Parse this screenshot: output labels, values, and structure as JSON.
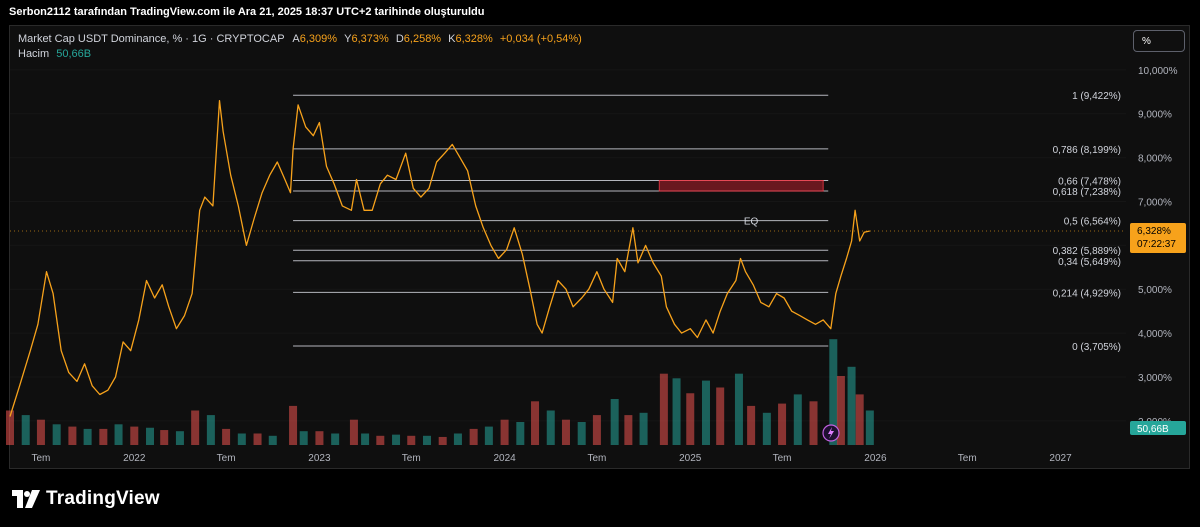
{
  "header": {
    "caption": "Serbon2112 tarafından TradingView.com ile Ara 21, 2025 18:37 UTC+2 tarihinde oluşturuldu"
  },
  "legend": {
    "symbol": "Market Cap USDT Dominance, % · 1G · CRYPTOCAP",
    "o_label": "A",
    "o_value": "6,309%",
    "h_label": "Y",
    "h_value": "6,373%",
    "l_label": "D",
    "l_value": "6,258%",
    "c_label": "K",
    "c_value": "6,328%",
    "change": "+0,034 (+0,54%)",
    "volume_label": "Hacim",
    "volume_value": "50,66B"
  },
  "toolbar": {
    "scale_button": "%"
  },
  "branding": {
    "logo_text": "TradingView"
  },
  "colors": {
    "background": "#0f0f0f",
    "price_line": "#f7a21b",
    "volume_up": "#26a69a",
    "volume_down": "#ef5350",
    "fib_line": "#d1d4dc",
    "zone_fill": "#7a1a22",
    "zone_border": "#f23645",
    "last_price_badge": "#f7a21b",
    "volume_badge": "#26a69a"
  },
  "chart_data": {
    "type": "line",
    "title": "Market Cap USDT Dominance, %",
    "y_unit": "%",
    "ylim": [
      1.45,
      10.27
    ],
    "y_ticks": [
      {
        "v": 10.0,
        "label": "10,000%"
      },
      {
        "v": 9.0,
        "label": "9,000%"
      },
      {
        "v": 8.0,
        "label": "8,000%"
      },
      {
        "v": 7.0,
        "label": "7,000%"
      },
      {
        "v": 6.0,
        "label": "6,000%"
      },
      {
        "v": 5.0,
        "label": "5,000%"
      },
      {
        "v": 4.0,
        "label": "4,000%"
      },
      {
        "v": 3.0,
        "label": "3,000%"
      },
      {
        "v": 2.0,
        "label": "2,000%"
      }
    ],
    "x_range": [
      "2021-05-01",
      "2027-05-10"
    ],
    "x_ticks": [
      {
        "date": "2021-07-01",
        "label": "Tem"
      },
      {
        "date": "2022-01-01",
        "label": "2022"
      },
      {
        "date": "2022-07-01",
        "label": "Tem"
      },
      {
        "date": "2023-01-01",
        "label": "2023"
      },
      {
        "date": "2023-07-01",
        "label": "Tem"
      },
      {
        "date": "2024-01-01",
        "label": "2024"
      },
      {
        "date": "2024-07-01",
        "label": "Tem"
      },
      {
        "date": "2025-01-01",
        "label": "2025"
      },
      {
        "date": "2025-07-01",
        "label": "Tem"
      },
      {
        "date": "2026-01-01",
        "label": "2026"
      },
      {
        "date": "2026-07-01",
        "label": "Tem"
      },
      {
        "date": "2027-01-01",
        "label": "2027"
      }
    ],
    "series": [
      {
        "values": [
          [
            "2021-05-01",
            2.1
          ],
          [
            "2021-05-20",
            2.8
          ],
          [
            "2021-06-10",
            3.6
          ],
          [
            "2021-06-25",
            4.2
          ],
          [
            "2021-07-12",
            5.4
          ],
          [
            "2021-07-25",
            4.9
          ],
          [
            "2021-08-10",
            3.6
          ],
          [
            "2021-08-25",
            3.1
          ],
          [
            "2021-09-10",
            2.9
          ],
          [
            "2021-09-25",
            3.3
          ],
          [
            "2021-10-10",
            2.8
          ],
          [
            "2021-10-25",
            2.6
          ],
          [
            "2021-11-10",
            2.7
          ],
          [
            "2021-11-25",
            3.0
          ],
          [
            "2021-12-10",
            3.8
          ],
          [
            "2021-12-25",
            3.6
          ],
          [
            "2022-01-10",
            4.3
          ],
          [
            "2022-01-25",
            5.2
          ],
          [
            "2022-02-10",
            4.8
          ],
          [
            "2022-02-25",
            5.1
          ],
          [
            "2022-03-10",
            4.6
          ],
          [
            "2022-03-25",
            4.1
          ],
          [
            "2022-04-10",
            4.4
          ],
          [
            "2022-04-25",
            4.9
          ],
          [
            "2022-05-10",
            6.8
          ],
          [
            "2022-05-20",
            7.1
          ],
          [
            "2022-06-05",
            6.9
          ],
          [
            "2022-06-18",
            9.3
          ],
          [
            "2022-06-25",
            8.6
          ],
          [
            "2022-07-10",
            7.6
          ],
          [
            "2022-07-25",
            6.9
          ],
          [
            "2022-08-10",
            6.0
          ],
          [
            "2022-08-25",
            6.6
          ],
          [
            "2022-09-10",
            7.2
          ],
          [
            "2022-09-25",
            7.6
          ],
          [
            "2022-10-10",
            7.9
          ],
          [
            "2022-10-25",
            7.5
          ],
          [
            "2022-11-05",
            7.2
          ],
          [
            "2022-11-10",
            8.2
          ],
          [
            "2022-11-20",
            9.2
          ],
          [
            "2022-12-05",
            8.7
          ],
          [
            "2022-12-20",
            8.5
          ],
          [
            "2023-01-01",
            8.8
          ],
          [
            "2023-01-15",
            7.8
          ],
          [
            "2023-01-30",
            7.4
          ],
          [
            "2023-02-15",
            6.9
          ],
          [
            "2023-03-05",
            6.8
          ],
          [
            "2023-03-15",
            7.5
          ],
          [
            "2023-03-30",
            6.8
          ],
          [
            "2023-04-15",
            6.8
          ],
          [
            "2023-05-01",
            7.4
          ],
          [
            "2023-05-15",
            7.6
          ],
          [
            "2023-06-01",
            7.5
          ],
          [
            "2023-06-20",
            8.1
          ],
          [
            "2023-07-05",
            7.3
          ],
          [
            "2023-07-20",
            7.1
          ],
          [
            "2023-08-05",
            7.3
          ],
          [
            "2023-08-20",
            7.9
          ],
          [
            "2023-09-05",
            8.1
          ],
          [
            "2023-09-20",
            8.3
          ],
          [
            "2023-10-05",
            8.0
          ],
          [
            "2023-10-20",
            7.7
          ],
          [
            "2023-11-05",
            6.9
          ],
          [
            "2023-11-20",
            6.4
          ],
          [
            "2023-12-05",
            6.0
          ],
          [
            "2023-12-20",
            5.7
          ],
          [
            "2024-01-05",
            5.9
          ],
          [
            "2024-01-20",
            6.4
          ],
          [
            "2024-02-05",
            5.8
          ],
          [
            "2024-02-20",
            5.0
          ],
          [
            "2024-03-05",
            4.2
          ],
          [
            "2024-03-15",
            4.0
          ],
          [
            "2024-03-30",
            4.6
          ],
          [
            "2024-04-15",
            5.2
          ],
          [
            "2024-05-01",
            5.0
          ],
          [
            "2024-05-15",
            4.6
          ],
          [
            "2024-06-01",
            4.8
          ],
          [
            "2024-06-15",
            5.0
          ],
          [
            "2024-07-01",
            5.4
          ],
          [
            "2024-07-15",
            5.0
          ],
          [
            "2024-08-01",
            4.7
          ],
          [
            "2024-08-10",
            5.7
          ],
          [
            "2024-08-25",
            5.4
          ],
          [
            "2024-09-10",
            6.4
          ],
          [
            "2024-09-20",
            5.6
          ],
          [
            "2024-10-05",
            6.0
          ],
          [
            "2024-10-20",
            5.6
          ],
          [
            "2024-11-05",
            5.3
          ],
          [
            "2024-11-15",
            4.6
          ],
          [
            "2024-12-01",
            4.2
          ],
          [
            "2024-12-15",
            4.0
          ],
          [
            "2025-01-01",
            4.1
          ],
          [
            "2025-01-15",
            3.9
          ],
          [
            "2025-02-01",
            4.3
          ],
          [
            "2025-02-15",
            4.0
          ],
          [
            "2025-03-01",
            4.5
          ],
          [
            "2025-03-15",
            4.9
          ],
          [
            "2025-04-01",
            5.2
          ],
          [
            "2025-04-10",
            5.7
          ],
          [
            "2025-04-20",
            5.4
          ],
          [
            "2025-05-05",
            5.1
          ],
          [
            "2025-05-20",
            4.7
          ],
          [
            "2025-06-05",
            4.6
          ],
          [
            "2025-06-20",
            4.9
          ],
          [
            "2025-07-05",
            4.8
          ],
          [
            "2025-07-20",
            4.5
          ],
          [
            "2025-08-05",
            4.4
          ],
          [
            "2025-08-20",
            4.3
          ],
          [
            "2025-09-05",
            4.2
          ],
          [
            "2025-09-20",
            4.3
          ],
          [
            "2025-10-05",
            4.1
          ],
          [
            "2025-10-15",
            4.9
          ],
          [
            "2025-10-25",
            5.3
          ],
          [
            "2025-11-05",
            5.7
          ],
          [
            "2025-11-15",
            6.1
          ],
          [
            "2025-11-22",
            6.8
          ],
          [
            "2025-12-01",
            6.1
          ],
          [
            "2025-12-10",
            6.3
          ],
          [
            "2025-12-21",
            6.328
          ]
        ]
      }
    ],
    "volume": {
      "label": "Hacim",
      "last": "50,66B",
      "bars": [
        [
          "2021-05-01",
          0.3,
          "d"
        ],
        [
          "2021-06-01",
          0.26,
          "u"
        ],
        [
          "2021-07-01",
          0.22,
          "d"
        ],
        [
          "2021-08-01",
          0.18,
          "u"
        ],
        [
          "2021-09-01",
          0.16,
          "d"
        ],
        [
          "2021-10-01",
          0.14,
          "u"
        ],
        [
          "2021-11-01",
          0.14,
          "d"
        ],
        [
          "2021-12-01",
          0.18,
          "u"
        ],
        [
          "2022-01-01",
          0.16,
          "d"
        ],
        [
          "2022-02-01",
          0.15,
          "u"
        ],
        [
          "2022-03-01",
          0.13,
          "d"
        ],
        [
          "2022-04-01",
          0.12,
          "u"
        ],
        [
          "2022-05-01",
          0.3,
          "d"
        ],
        [
          "2022-06-01",
          0.26,
          "u"
        ],
        [
          "2022-07-01",
          0.14,
          "d"
        ],
        [
          "2022-08-01",
          0.1,
          "u"
        ],
        [
          "2022-09-01",
          0.1,
          "d"
        ],
        [
          "2022-10-01",
          0.08,
          "u"
        ],
        [
          "2022-11-10",
          0.34,
          "d"
        ],
        [
          "2022-12-01",
          0.12,
          "u"
        ],
        [
          "2023-01-01",
          0.12,
          "d"
        ],
        [
          "2023-02-01",
          0.1,
          "u"
        ],
        [
          "2023-03-10",
          0.22,
          "d"
        ],
        [
          "2023-04-01",
          0.1,
          "u"
        ],
        [
          "2023-05-01",
          0.08,
          "d"
        ],
        [
          "2023-06-01",
          0.09,
          "u"
        ],
        [
          "2023-07-01",
          0.08,
          "d"
        ],
        [
          "2023-08-01",
          0.08,
          "u"
        ],
        [
          "2023-09-01",
          0.07,
          "d"
        ],
        [
          "2023-10-01",
          0.1,
          "u"
        ],
        [
          "2023-11-01",
          0.14,
          "d"
        ],
        [
          "2023-12-01",
          0.16,
          "u"
        ],
        [
          "2024-01-01",
          0.22,
          "d"
        ],
        [
          "2024-02-01",
          0.2,
          "u"
        ],
        [
          "2024-03-01",
          0.38,
          "d"
        ],
        [
          "2024-04-01",
          0.3,
          "u"
        ],
        [
          "2024-05-01",
          0.22,
          "d"
        ],
        [
          "2024-06-01",
          0.2,
          "u"
        ],
        [
          "2024-07-01",
          0.26,
          "d"
        ],
        [
          "2024-08-05",
          0.4,
          "u"
        ],
        [
          "2024-09-01",
          0.26,
          "d"
        ],
        [
          "2024-10-01",
          0.28,
          "u"
        ],
        [
          "2024-11-10",
          0.62,
          "d"
        ],
        [
          "2024-12-05",
          0.58,
          "u"
        ],
        [
          "2025-01-01",
          0.45,
          "d"
        ],
        [
          "2025-02-01",
          0.56,
          "u"
        ],
        [
          "2025-03-01",
          0.5,
          "d"
        ],
        [
          "2025-04-07",
          0.62,
          "u"
        ],
        [
          "2025-05-01",
          0.34,
          "d"
        ],
        [
          "2025-06-01",
          0.28,
          "u"
        ],
        [
          "2025-07-01",
          0.36,
          "d"
        ],
        [
          "2025-08-01",
          0.44,
          "u"
        ],
        [
          "2025-09-01",
          0.38,
          "d"
        ],
        [
          "2025-10-10",
          0.92,
          "u"
        ],
        [
          "2025-10-25",
          0.6,
          "d"
        ],
        [
          "2025-11-15",
          0.68,
          "u"
        ],
        [
          "2025-12-01",
          0.44,
          "d"
        ],
        [
          "2025-12-21",
          0.3,
          "u"
        ]
      ]
    },
    "fib_levels": [
      {
        "value": 9.422,
        "label": "1 (9,422%)"
      },
      {
        "value": 8.199,
        "label": "0,786 (8,199%)"
      },
      {
        "value": 7.478,
        "label": "0,66 (7,478%)"
      },
      {
        "value": 7.238,
        "label": "0,618 (7,238%)"
      },
      {
        "value": 6.564,
        "label": "0,5 (6,564%)"
      },
      {
        "value": 5.889,
        "label": "0,382 (5,889%)"
      },
      {
        "value": 5.649,
        "label": "0,34 (5,649%)"
      },
      {
        "value": 4.929,
        "label": "0,214 (4,929%)"
      },
      {
        "value": 3.705,
        "label": "0 (3,705%)"
      }
    ],
    "fib_start": "2022-11-10",
    "fib_end": "2025-09-30",
    "zone": {
      "top": 7.478,
      "bottom": 7.238,
      "from": "2024-11-01",
      "to": "2025-09-20"
    },
    "eq_label": "EQ",
    "last_price": {
      "value": 6.328,
      "label": "6,328%",
      "countdown": "07:22:37"
    },
    "price_line_level": 6.564
  }
}
